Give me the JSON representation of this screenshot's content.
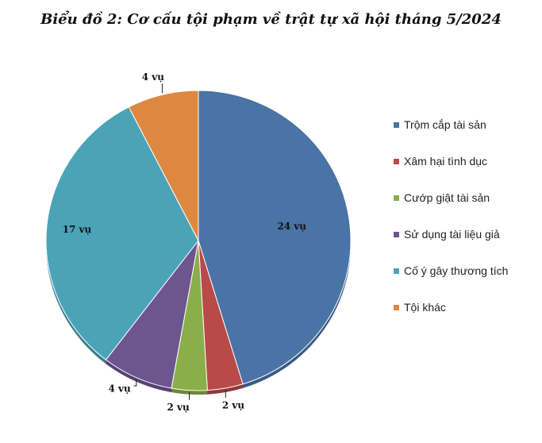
{
  "chart_data": {
    "type": "pie",
    "title": "Biểu đồ 2: Cơ cấu tội phạm về trật tự xã hội tháng 5/2024",
    "categories": [
      "Trộm cắp tài sản",
      "Xâm hại tình dục",
      "Cướp giật tài sản",
      "Sử dụng tài liệu giả",
      "Cố ý gây thương tích",
      "Tội khác"
    ],
    "values": [
      24,
      2,
      2,
      4,
      17,
      4
    ],
    "data_labels": [
      "24 vụ",
      "2 vụ",
      "2 vụ",
      "4 vụ",
      "17 vụ",
      "4 vụ"
    ],
    "colors": [
      "#4a73a6",
      "#b84a48",
      "#8aae4a",
      "#6d5590",
      "#4ba3b8",
      "#dd8840"
    ],
    "legend_position": "right",
    "start_angle": "top",
    "direction": "clockwise"
  }
}
